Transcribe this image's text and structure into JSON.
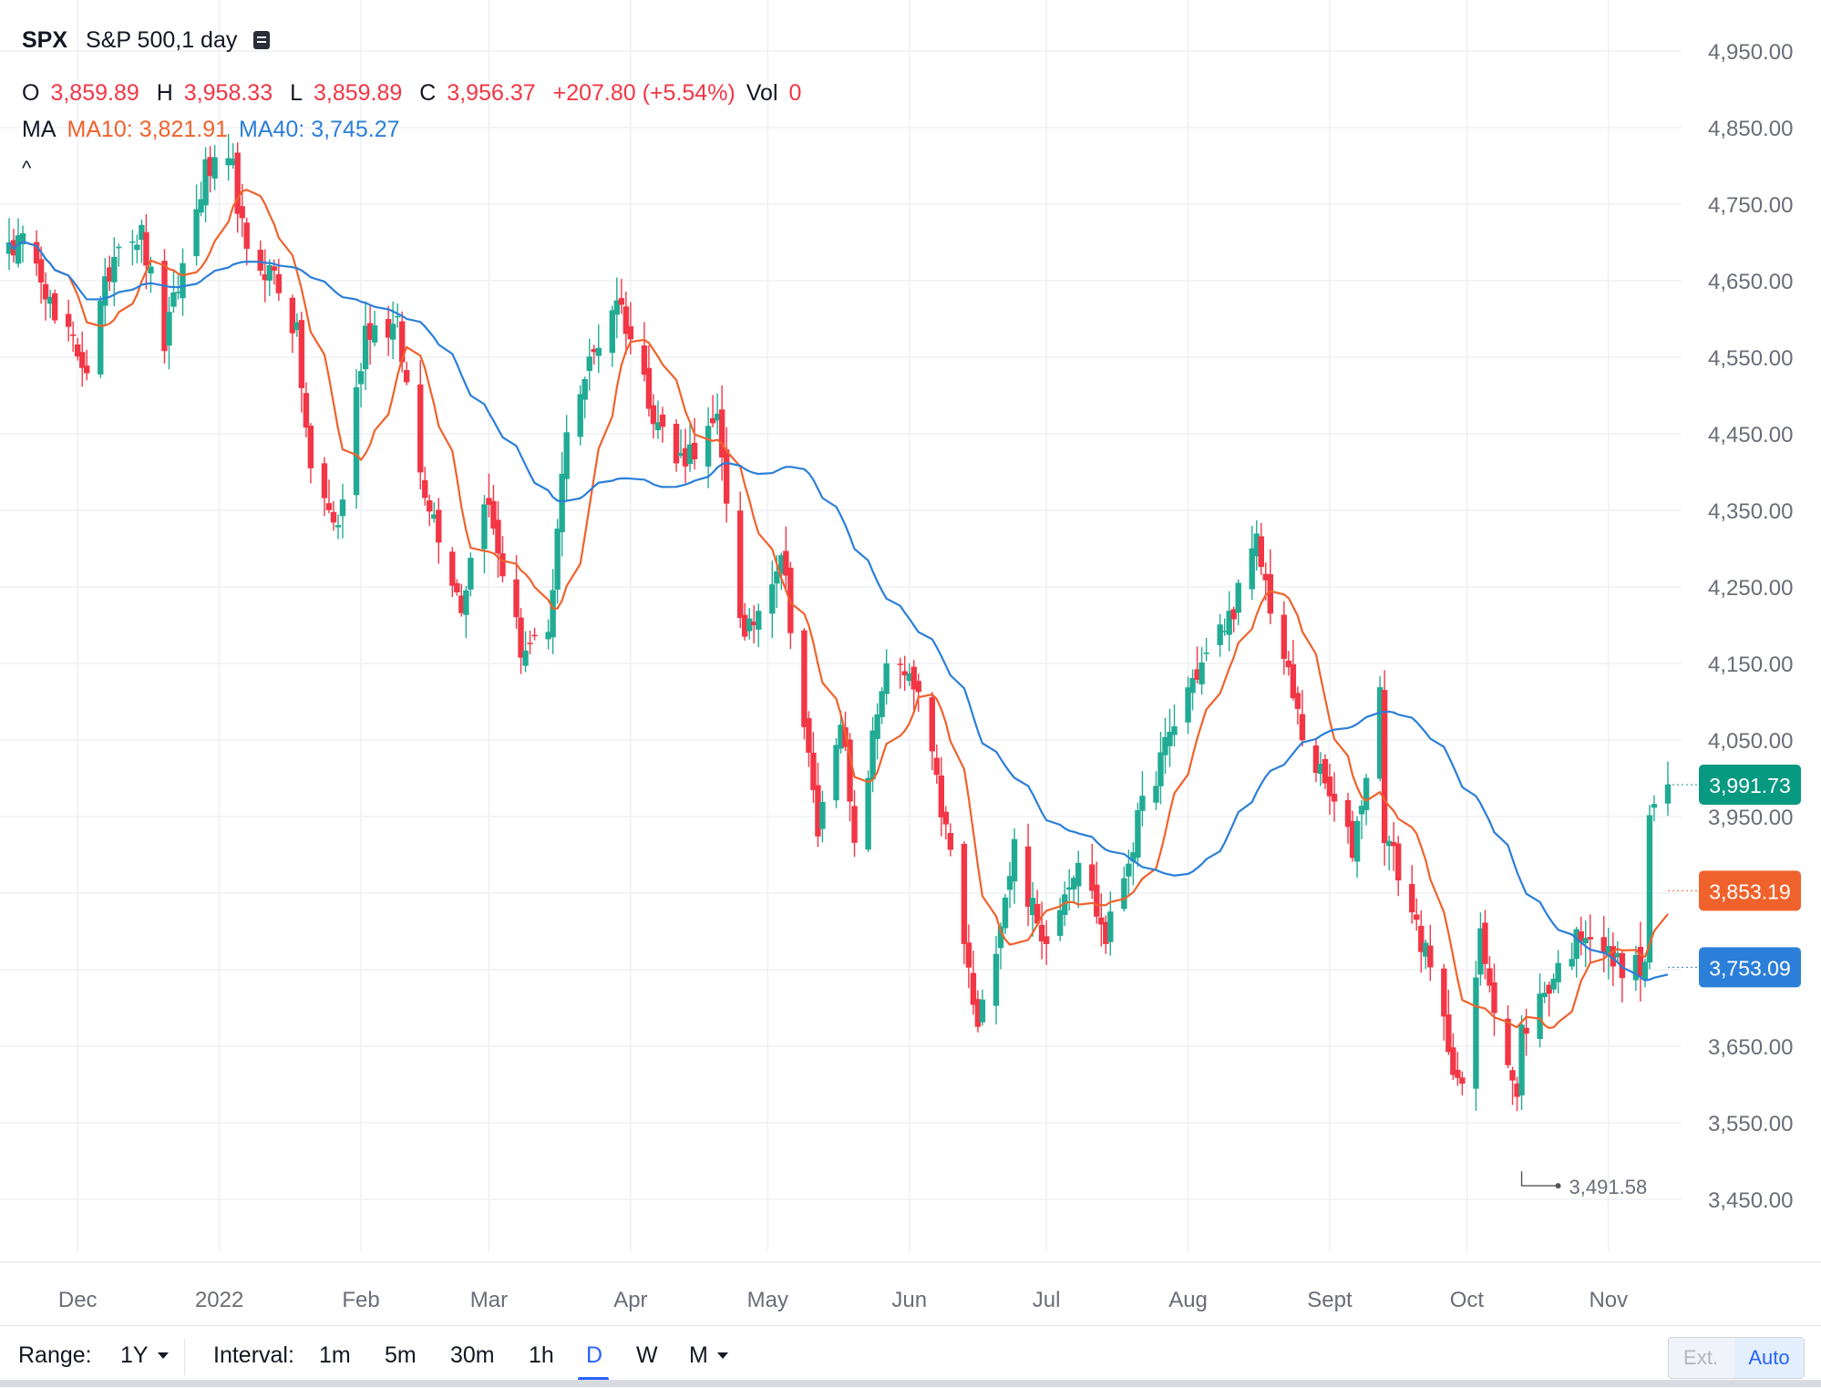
{
  "legend": {
    "symbol": "SPX",
    "description": "S&P 500,1 day",
    "o_label": "O",
    "o_value": "3,859.89",
    "h_label": "H",
    "h_value": "3,958.33",
    "l_label": "L",
    "l_value": "3,859.89",
    "c_label": "C",
    "c_value": "3,956.37",
    "change": "+207.80 (+5.54%)",
    "vol_label": "Vol",
    "vol_value": "0",
    "ma_label": "MA",
    "ma10": "MA10: 3,821.91",
    "ma40": "MA40: 3,745.27",
    "collapse": "^"
  },
  "toolbar": {
    "range_label": "Range:",
    "range_value": "1Y",
    "interval_label": "Interval:",
    "intervals": [
      "1m",
      "5m",
      "30m",
      "1h",
      "D",
      "W",
      "M"
    ],
    "active_interval": "D",
    "ext_label": "Ext.",
    "auto_label": "Auto"
  },
  "chart_data": {
    "type": "candlestick",
    "y_axis": {
      "ticks": [
        4950,
        4850,
        4750,
        4650,
        4550,
        4450,
        4350,
        4250,
        4150,
        4050,
        3950,
        3850,
        3750,
        3650,
        3550,
        3450
      ],
      "tick_labels": [
        "4,950.00",
        "4,850.00",
        "4,750.00",
        "4,650.00",
        "4,550.00",
        "4,450.00",
        "4,350.00",
        "4,250.00",
        "4,150.00",
        "4,050.00",
        "3,950.00",
        "3,850.00",
        "3,750.00",
        "3,650.00",
        "3,550.00",
        "3,450.00"
      ],
      "range": [
        3350,
        5000
      ],
      "position": "right"
    },
    "x_axis": {
      "labels": [
        "Dec",
        "2022",
        "Feb",
        "Mar",
        "Apr",
        "May",
        "Jun",
        "Jul",
        "Aug",
        "Sept",
        "Oct",
        "Nov"
      ],
      "label_dates": [
        "2021-12-01",
        "2022-01-01",
        "2022-02-01",
        "2022-03-01",
        "2022-04-01",
        "2022-05-01",
        "2022-06-01",
        "2022-07-01",
        "2022-08-01",
        "2022-09-01",
        "2022-10-01",
        "2022-11-01"
      ],
      "range": [
        "2021-11-16",
        "2022-11-14"
      ]
    },
    "close_anchors": [
      [
        "2021-11-16",
        4700
      ],
      [
        "2021-11-22",
        4690
      ],
      [
        "2021-11-26",
        4595
      ],
      [
        "2021-11-30",
        4567
      ],
      [
        "2021-12-03",
        4538
      ],
      [
        "2021-12-10",
        4712
      ],
      [
        "2021-12-15",
        4709
      ],
      [
        "2021-12-20",
        4568
      ],
      [
        "2021-12-29",
        4793
      ],
      [
        "2022-01-04",
        4793
      ],
      [
        "2022-01-07",
        4677
      ],
      [
        "2022-01-13",
        4660
      ],
      [
        "2022-01-18",
        4577
      ],
      [
        "2022-01-21",
        4397
      ],
      [
        "2022-01-27",
        4327
      ],
      [
        "2022-02-02",
        4590
      ],
      [
        "2022-02-09",
        4587
      ],
      [
        "2022-02-14",
        4401
      ],
      [
        "2022-02-23",
        4226
      ],
      [
        "2022-02-28",
        4374
      ],
      [
        "2022-03-08",
        4170
      ],
      [
        "2022-03-14",
        4173
      ],
      [
        "2022-03-18",
        4463
      ],
      [
        "2022-03-29",
        4632
      ],
      [
        "2022-04-06",
        4481
      ],
      [
        "2022-04-11",
        4413
      ],
      [
        "2022-04-20",
        4460
      ],
      [
        "2022-04-26",
        4175
      ],
      [
        "2022-05-04",
        4300
      ],
      [
        "2022-05-12",
        3930
      ],
      [
        "2022-05-17",
        4088
      ],
      [
        "2022-05-20",
        3901
      ],
      [
        "2022-05-27",
        4158
      ],
      [
        "2022-06-03",
        4108
      ],
      [
        "2022-06-10",
        3900
      ],
      [
        "2022-06-16",
        3667
      ],
      [
        "2022-06-24",
        3912
      ],
      [
        "2022-06-30",
        3785
      ],
      [
        "2022-07-08",
        3899
      ],
      [
        "2022-07-14",
        3790
      ],
      [
        "2022-07-22",
        3961
      ],
      [
        "2022-08-01",
        4118
      ],
      [
        "2022-08-10",
        4210
      ],
      [
        "2022-08-16",
        4305
      ],
      [
        "2022-08-19",
        4228
      ],
      [
        "2022-08-26",
        4057
      ],
      [
        "2022-09-06",
        3908
      ],
      [
        "2022-09-12",
        4110
      ],
      [
        "2022-09-13",
        3932
      ],
      [
        "2022-09-21",
        3790
      ],
      [
        "2022-09-30",
        3586
      ],
      [
        "2022-10-04",
        3791
      ],
      [
        "2022-10-12",
        3577
      ],
      [
        "2022-10-13",
        3669
      ],
      [
        "2022-10-21",
        3752
      ],
      [
        "2022-10-27",
        3807
      ],
      [
        "2022-11-02",
        3760
      ],
      [
        "2022-11-09",
        3749
      ],
      [
        "2022-11-10",
        3956
      ],
      [
        "2022-11-14",
        3992
      ]
    ],
    "series": [
      {
        "name": "MA10",
        "color": "#f0622c",
        "value": 3853.19
      },
      {
        "name": "MA40",
        "color": "#2b7fd9",
        "value": 3753.09
      }
    ],
    "last_price": 3991.73,
    "price_labels": [
      {
        "text": "3,991.73",
        "value": 3991.73,
        "color": "#089981"
      },
      {
        "text": "3,853.19",
        "value": 3853.19,
        "color": "#f0622c"
      },
      {
        "text": "3,753.09",
        "value": 3753.09,
        "color": "#2b7fd9"
      }
    ],
    "low_annotation": {
      "text": "3,491.58",
      "date": "2022-10-13",
      "value": 3491.58
    },
    "up_color": "#22ab94",
    "down_color": "#f23645",
    "grid": true
  }
}
